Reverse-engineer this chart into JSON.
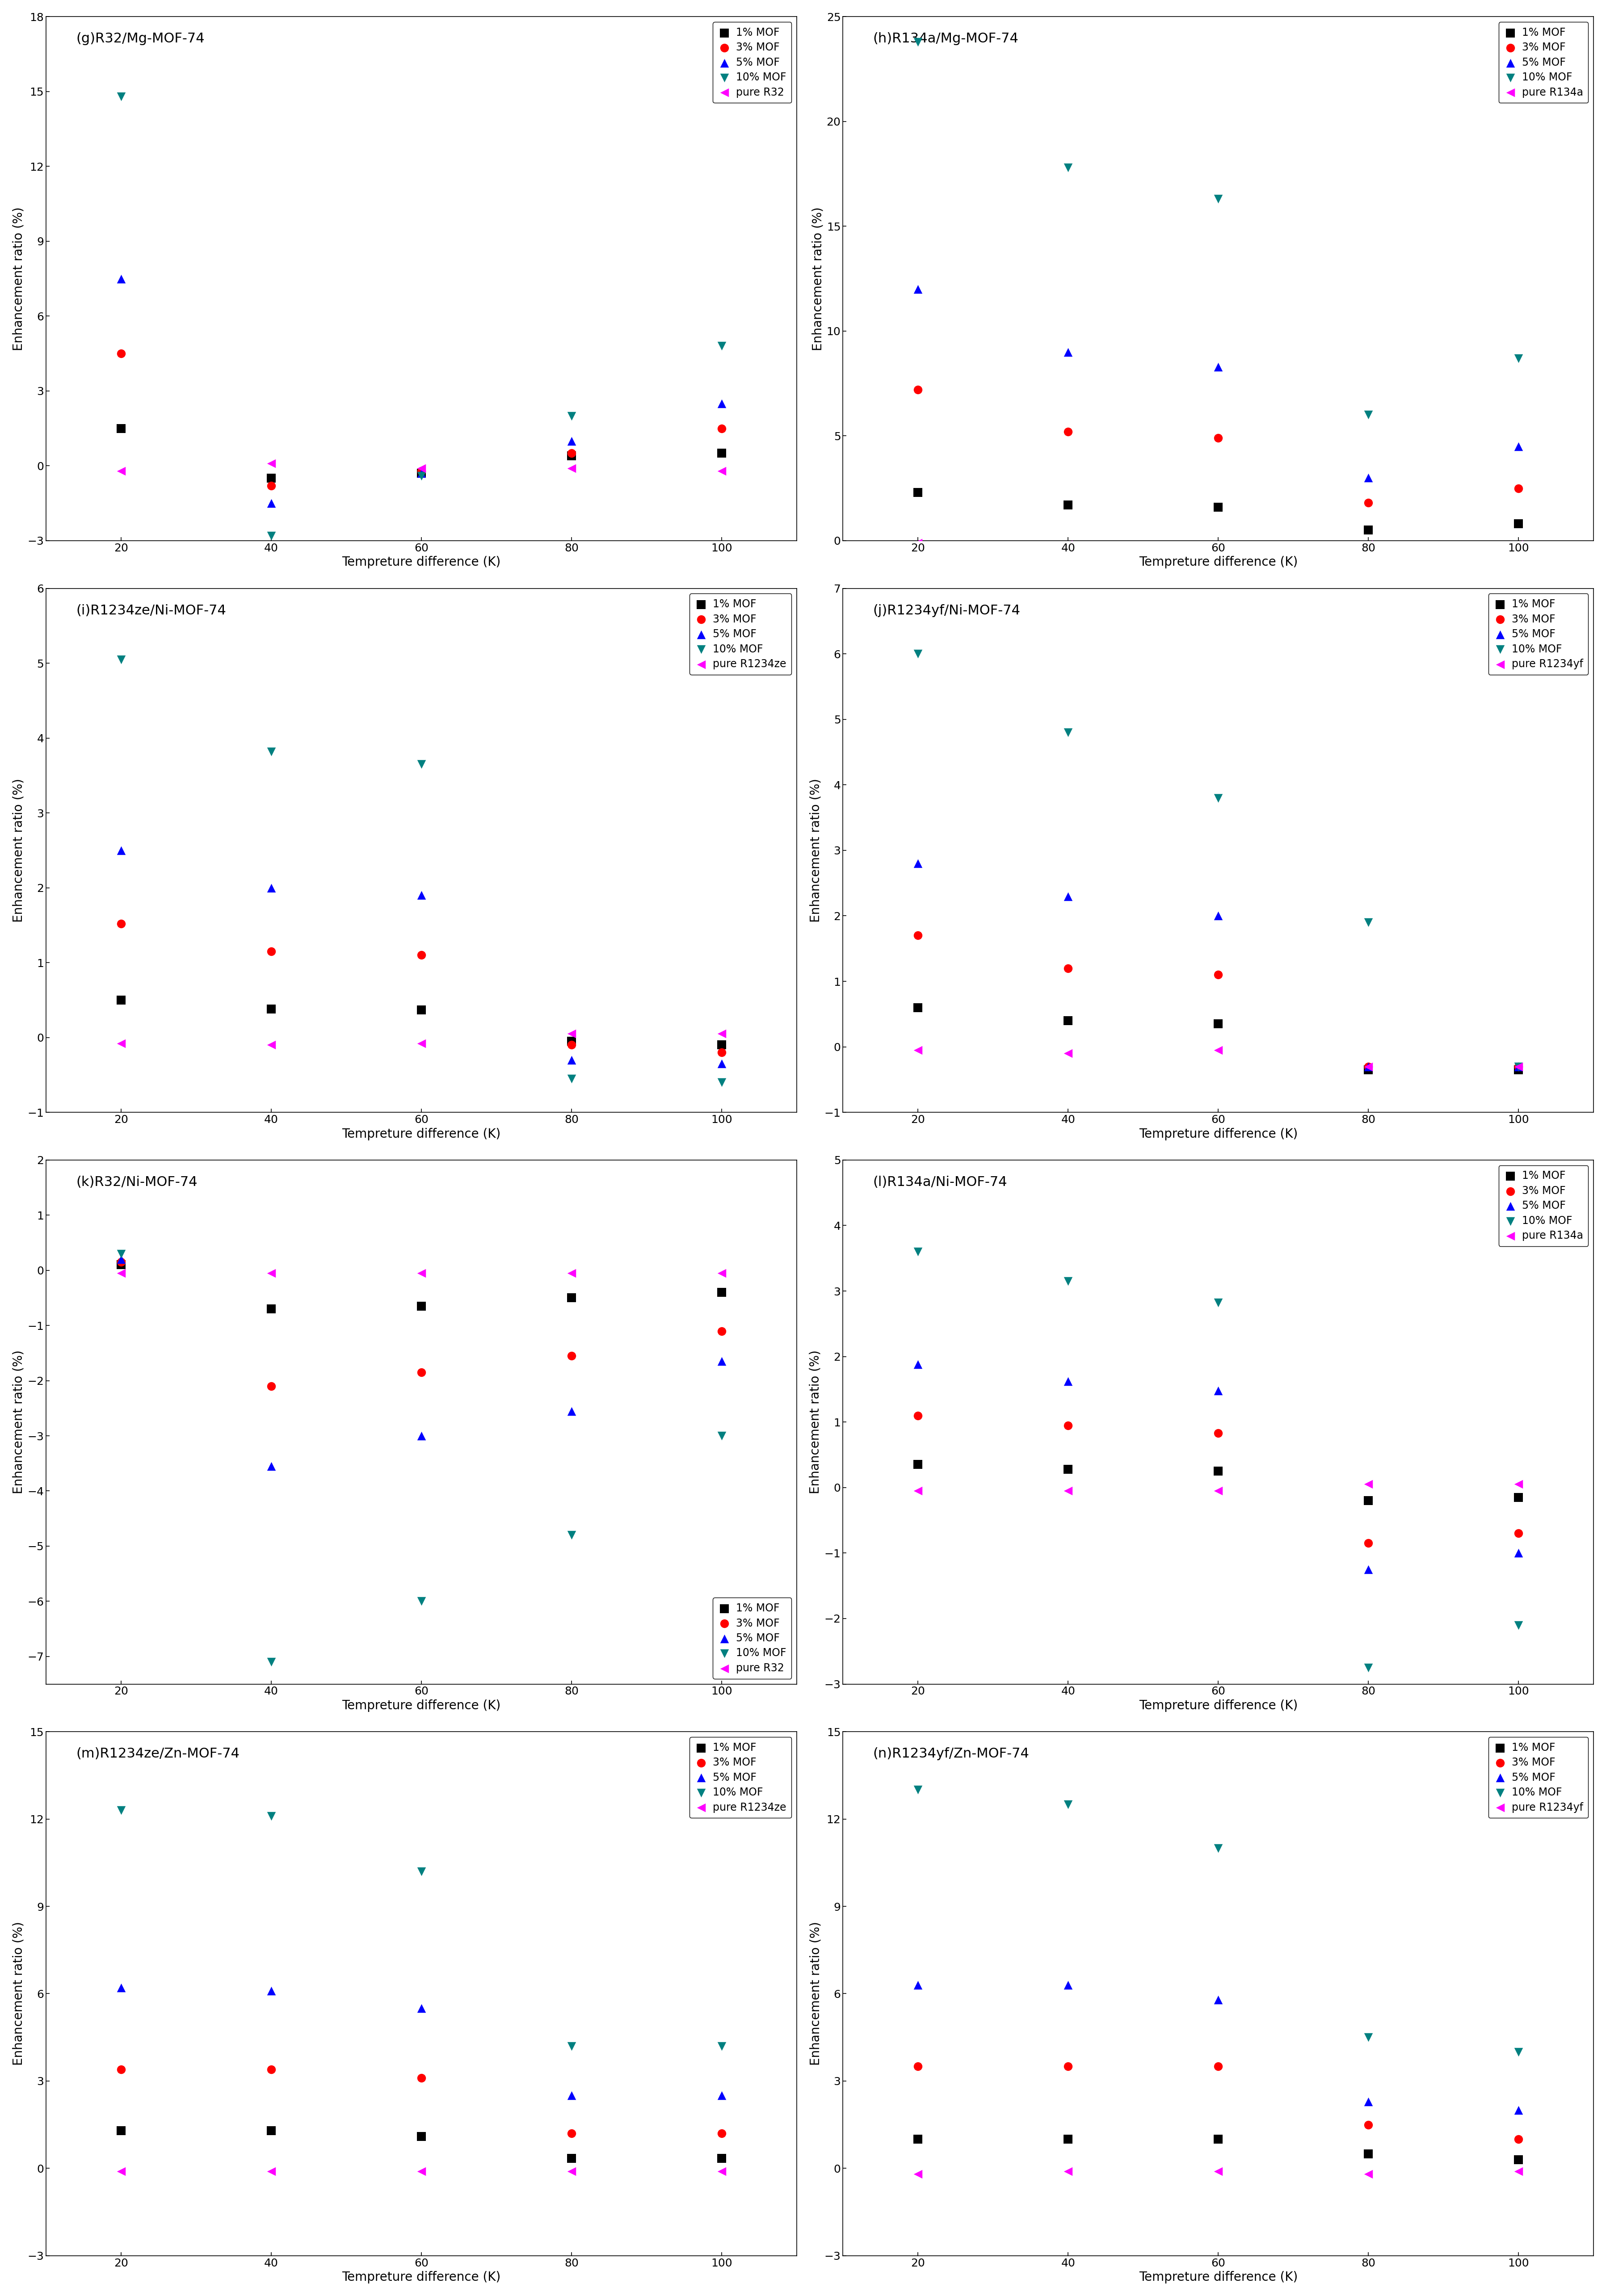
{
  "x": [
    20,
    40,
    60,
    80,
    100
  ],
  "panels": [
    {
      "label": "(g)R32/Mg-MOF-74",
      "ylabel": "Enhancement ratio (%)",
      "xlabel": "Tempreture difference (K)",
      "ylim": [
        -3,
        18
      ],
      "yticks": [
        -3,
        0,
        3,
        6,
        9,
        12,
        15,
        18
      ],
      "pure_label": "pure R32",
      "legend_loc": "upper right",
      "series": {
        "1% MOF": [
          1.5,
          -0.5,
          -0.3,
          0.4,
          0.5
        ],
        "3% MOF": [
          4.5,
          -0.8,
          -0.2,
          0.5,
          1.5
        ],
        "5% MOF": [
          7.5,
          -1.5,
          -0.3,
          1.0,
          2.5
        ],
        "10% MOF": [
          14.8,
          -2.8,
          -0.4,
          2.0,
          4.8
        ],
        "pure R32": [
          -0.2,
          0.1,
          -0.1,
          -0.1,
          -0.2
        ]
      }
    },
    {
      "label": "(h)R134a/Mg-MOF-74",
      "ylabel": "Enhancement ratio (%)",
      "xlabel": "Tempreture difference (K)",
      "ylim": [
        0,
        25
      ],
      "yticks": [
        0,
        5,
        10,
        15,
        20,
        25
      ],
      "pure_label": "pure R134a",
      "legend_loc": "upper right",
      "series": {
        "1% MOF": [
          2.3,
          1.7,
          1.6,
          0.5,
          0.8
        ],
        "3% MOF": [
          7.2,
          5.2,
          4.9,
          1.8,
          2.5
        ],
        "5% MOF": [
          12.0,
          9.0,
          8.3,
          3.0,
          4.5
        ],
        "10% MOF": [
          23.8,
          17.8,
          16.3,
          6.0,
          8.7
        ],
        "pure R134a": [
          -0.1,
          -0.2,
          -0.3,
          -0.2,
          -0.2
        ]
      }
    },
    {
      "label": "(i)R1234ze/Ni-MOF-74",
      "ylabel": "Enhancement ratio (%)",
      "xlabel": "Tempreture difference (K)",
      "ylim": [
        -1,
        6
      ],
      "yticks": [
        -1,
        0,
        1,
        2,
        3,
        4,
        5,
        6
      ],
      "pure_label": "pure R1234ze",
      "legend_loc": "upper right",
      "series": {
        "1% MOF": [
          0.5,
          0.38,
          0.37,
          -0.05,
          -0.1
        ],
        "3% MOF": [
          1.52,
          1.15,
          1.1,
          -0.1,
          -0.2
        ],
        "5% MOF": [
          2.5,
          2.0,
          1.9,
          -0.3,
          -0.35
        ],
        "10% MOF": [
          5.05,
          3.82,
          3.65,
          -0.55,
          -0.6
        ],
        "pure R1234ze": [
          -0.08,
          -0.1,
          -0.08,
          0.05,
          0.05
        ]
      }
    },
    {
      "label": "(j)R1234yf/Ni-MOF-74",
      "ylabel": "Enhancement ratio (%)",
      "xlabel": "Tempreture difference (K)",
      "ylim": [
        -1,
        7
      ],
      "yticks": [
        -1,
        0,
        1,
        2,
        3,
        4,
        5,
        6,
        7
      ],
      "pure_label": "pure R1234yf",
      "legend_loc": "upper right",
      "series": {
        "1% MOF": [
          0.6,
          0.4,
          0.35,
          -0.35,
          -0.35
        ],
        "3% MOF": [
          1.7,
          1.2,
          1.1,
          -0.3,
          -0.3
        ],
        "5% MOF": [
          2.8,
          2.3,
          2.0,
          -0.3,
          -0.3
        ],
        "10% MOF": [
          6.0,
          4.8,
          3.8,
          1.9,
          -0.3
        ],
        "pure R1234yf": [
          -0.05,
          -0.1,
          -0.05,
          -0.3,
          -0.3
        ]
      }
    },
    {
      "label": "(k)R32/Ni-MOF-74",
      "ylabel": "Enhancement ratio (%)",
      "xlabel": "Tempreture difference (K)",
      "ylim": [
        -7.5,
        2
      ],
      "yticks": [
        -7,
        -6,
        -5,
        -4,
        -3,
        -2,
        -1,
        0,
        1,
        2
      ],
      "pure_label": "pure R32",
      "legend_loc": "lower right",
      "series": {
        "1% MOF": [
          0.1,
          -0.7,
          -0.65,
          -0.5,
          -0.4
        ],
        "3% MOF": [
          0.15,
          -2.1,
          -1.85,
          -1.55,
          -1.1
        ],
        "5% MOF": [
          0.2,
          -3.55,
          -3.0,
          -2.55,
          -1.65
        ],
        "10% MOF": [
          0.3,
          -7.1,
          -6.0,
          -4.8,
          -3.0
        ],
        "pure R32": [
          -0.05,
          -0.05,
          -0.05,
          -0.05,
          -0.05
        ]
      }
    },
    {
      "label": "(l)R134a/Ni-MOF-74",
      "ylabel": "Enhancement ratio (%)",
      "xlabel": "Tempreture difference (K)",
      "ylim": [
        -3,
        5
      ],
      "yticks": [
        -3,
        -2,
        -1,
        0,
        1,
        2,
        3,
        4,
        5
      ],
      "pure_label": "pure R134a",
      "legend_loc": "upper right",
      "series": {
        "1% MOF": [
          0.35,
          0.28,
          0.25,
          -0.2,
          -0.15
        ],
        "3% MOF": [
          1.1,
          0.95,
          0.83,
          -0.85,
          -0.7
        ],
        "5% MOF": [
          1.88,
          1.62,
          1.48,
          -1.25,
          -1.0
        ],
        "10% MOF": [
          3.6,
          3.15,
          2.82,
          -2.75,
          -2.1
        ],
        "pure R134a": [
          -0.05,
          -0.05,
          -0.05,
          0.05,
          0.05
        ]
      }
    },
    {
      "label": "(m)R1234ze/Zn-MOF-74",
      "ylabel": "Enhancement ratio (%)",
      "xlabel": "Tempreture difference (K)",
      "ylim": [
        -3,
        15
      ],
      "yticks": [
        -3,
        0,
        3,
        6,
        9,
        12,
        15
      ],
      "pure_label": "pure R1234ze",
      "legend_loc": "upper right",
      "series": {
        "1% MOF": [
          1.3,
          1.3,
          1.1,
          0.35,
          0.35
        ],
        "3% MOF": [
          3.4,
          3.4,
          3.1,
          1.2,
          1.2
        ],
        "5% MOF": [
          6.2,
          6.1,
          5.5,
          2.5,
          2.5
        ],
        "10% MOF": [
          12.3,
          12.1,
          10.2,
          4.2,
          4.2
        ],
        "pure R1234ze": [
          -0.1,
          -0.1,
          -0.1,
          -0.1,
          -0.1
        ]
      }
    },
    {
      "label": "(n)R1234yf/Zn-MOF-74",
      "ylabel": "Enhancement ratio (%)",
      "xlabel": "Tempreture difference (K)",
      "ylim": [
        -3,
        15
      ],
      "yticks": [
        -3,
        0,
        3,
        6,
        9,
        12,
        15
      ],
      "pure_label": "pure R1234yf",
      "legend_loc": "upper right",
      "series": {
        "1% MOF": [
          1.0,
          1.0,
          1.0,
          0.5,
          0.3
        ],
        "3% MOF": [
          3.5,
          3.5,
          3.5,
          1.5,
          1.0
        ],
        "5% MOF": [
          6.3,
          6.3,
          5.8,
          2.3,
          2.0
        ],
        "10% MOF": [
          13.0,
          12.5,
          11.0,
          4.5,
          4.0
        ],
        "pure R1234yf": [
          -0.2,
          -0.1,
          -0.1,
          -0.2,
          -0.1
        ]
      }
    }
  ],
  "series_order": [
    "1% MOF",
    "3% MOF",
    "5% MOF",
    "10% MOF"
  ],
  "series_styles": {
    "1% MOF": {
      "color": "#000000",
      "marker": "s"
    },
    "3% MOF": {
      "color": "#ff0000",
      "marker": "o"
    },
    "5% MOF": {
      "color": "#0000ff",
      "marker": "^"
    },
    "10% MOF": {
      "color": "#008080",
      "marker": "v"
    },
    "pure": {
      "color": "#ff00ff",
      "marker": "<"
    }
  },
  "markersize": 14,
  "title_fontsize": 22,
  "label_fontsize": 20,
  "tick_fontsize": 18,
  "legend_fontsize": 17
}
